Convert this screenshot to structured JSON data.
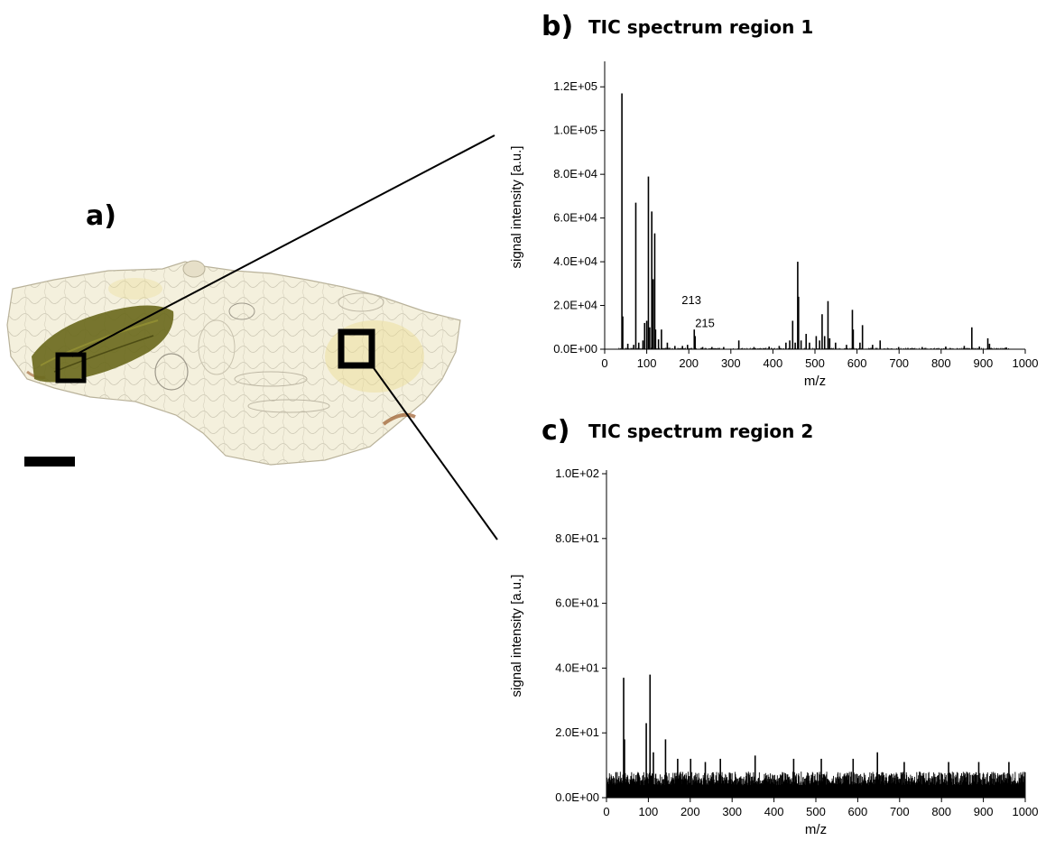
{
  "panels": {
    "a": {
      "letter": "a)"
    },
    "b": {
      "letter": "b)",
      "title": "TIC spectrum region 1"
    },
    "c": {
      "letter": "c)",
      "title": "TIC spectrum region 2"
    }
  },
  "colors": {
    "tissue_fill": "#f4f0dd",
    "tissue_edge": "#b9b29a",
    "lesion": "#6b6a1e",
    "yellow_patch": "#eadc92",
    "brown_streak": "#9a5a2a",
    "marker": "#000000"
  },
  "chart_data": [
    {
      "type": "bar",
      "title": "TIC spectrum region 1",
      "xlabel": "m/z",
      "ylabel": "signal intensity [a.u.]",
      "xlim": [
        0,
        1000
      ],
      "ylim": [
        0,
        130000
      ],
      "x_ticks": [
        "0",
        "100",
        "200",
        "300",
        "400",
        "500",
        "600",
        "700",
        "800",
        "900",
        "1000"
      ],
      "y_ticks": [
        "0.0E+00",
        "2.0E+04",
        "4.0E+04",
        "6.0E+04",
        "8.0E+04",
        "1.0E+05",
        "1.2E+05"
      ],
      "x_tick_values": [
        0,
        100,
        200,
        300,
        400,
        500,
        600,
        700,
        800,
        900,
        1000
      ],
      "y_tick_values": [
        0,
        20000,
        40000,
        60000,
        80000,
        100000,
        120000
      ],
      "peaks": [
        {
          "x": 41,
          "y": 117000
        },
        {
          "x": 43,
          "y": 15000
        },
        {
          "x": 55,
          "y": 2500
        },
        {
          "x": 69,
          "y": 2000
        },
        {
          "x": 74,
          "y": 67000
        },
        {
          "x": 81,
          "y": 3000
        },
        {
          "x": 91,
          "y": 4000
        },
        {
          "x": 95,
          "y": 12000
        },
        {
          "x": 100,
          "y": 13000
        },
        {
          "x": 104,
          "y": 79000
        },
        {
          "x": 107,
          "y": 10000
        },
        {
          "x": 112,
          "y": 63000
        },
        {
          "x": 115,
          "y": 32000
        },
        {
          "x": 119,
          "y": 53000
        },
        {
          "x": 121,
          "y": 9000
        },
        {
          "x": 128,
          "y": 4500
        },
        {
          "x": 135,
          "y": 9000
        },
        {
          "x": 149,
          "y": 3000
        },
        {
          "x": 167,
          "y": 1500
        },
        {
          "x": 185,
          "y": 1500
        },
        {
          "x": 197,
          "y": 2000
        },
        {
          "x": 213,
          "y": 9000
        },
        {
          "x": 215,
          "y": 6000
        },
        {
          "x": 233,
          "y": 1000
        },
        {
          "x": 255,
          "y": 1000
        },
        {
          "x": 283,
          "y": 1000
        },
        {
          "x": 319,
          "y": 4000
        },
        {
          "x": 355,
          "y": 1000
        },
        {
          "x": 391,
          "y": 1200
        },
        {
          "x": 415,
          "y": 1500
        },
        {
          "x": 431,
          "y": 3000
        },
        {
          "x": 440,
          "y": 4000
        },
        {
          "x": 447,
          "y": 13000
        },
        {
          "x": 453,
          "y": 3000
        },
        {
          "x": 459,
          "y": 40000
        },
        {
          "x": 461,
          "y": 24000
        },
        {
          "x": 467,
          "y": 4000
        },
        {
          "x": 479,
          "y": 7000
        },
        {
          "x": 487,
          "y": 3000
        },
        {
          "x": 503,
          "y": 6000
        },
        {
          "x": 511,
          "y": 4000
        },
        {
          "x": 517,
          "y": 16000
        },
        {
          "x": 523,
          "y": 6000
        },
        {
          "x": 531,
          "y": 22000
        },
        {
          "x": 535,
          "y": 5000
        },
        {
          "x": 549,
          "y": 3000
        },
        {
          "x": 575,
          "y": 2000
        },
        {
          "x": 589,
          "y": 18000
        },
        {
          "x": 591,
          "y": 9000
        },
        {
          "x": 607,
          "y": 3000
        },
        {
          "x": 613,
          "y": 11000
        },
        {
          "x": 637,
          "y": 2000
        },
        {
          "x": 655,
          "y": 4000
        },
        {
          "x": 699,
          "y": 1000
        },
        {
          "x": 755,
          "y": 1000
        },
        {
          "x": 811,
          "y": 1200
        },
        {
          "x": 855,
          "y": 1500
        },
        {
          "x": 873,
          "y": 10000
        },
        {
          "x": 891,
          "y": 1200
        },
        {
          "x": 911,
          "y": 5000
        },
        {
          "x": 915,
          "y": 2500
        },
        {
          "x": 955,
          "y": 800
        }
      ],
      "annotations": [
        {
          "text": "213",
          "x": 213
        },
        {
          "text": "215",
          "x": 215
        }
      ]
    },
    {
      "type": "bar",
      "title": "TIC spectrum region 2",
      "xlabel": "m/z",
      "ylabel": "signal intensity [a.u.]",
      "xlim": [
        0,
        1000
      ],
      "ylim": [
        0,
        100
      ],
      "x_ticks": [
        "0",
        "100",
        "200",
        "300",
        "400",
        "500",
        "600",
        "700",
        "800",
        "900",
        "1000"
      ],
      "y_ticks": [
        "0.0E+00",
        "2.0E+01",
        "4.0E+01",
        "6.0E+01",
        "8.0E+01",
        "1.0E+02"
      ],
      "x_tick_values": [
        0,
        100,
        200,
        300,
        400,
        500,
        600,
        700,
        800,
        900,
        1000
      ],
      "y_tick_values": [
        0,
        20,
        40,
        60,
        80,
        100
      ],
      "noise_baseline": 7,
      "peaks": [
        {
          "x": 41,
          "y": 37
        },
        {
          "x": 43,
          "y": 18
        },
        {
          "x": 95,
          "y": 23
        },
        {
          "x": 104,
          "y": 38
        },
        {
          "x": 112,
          "y": 14
        },
        {
          "x": 141,
          "y": 18
        },
        {
          "x": 170,
          "y": 12
        },
        {
          "x": 201,
          "y": 12
        },
        {
          "x": 236,
          "y": 11
        },
        {
          "x": 272,
          "y": 12
        },
        {
          "x": 355,
          "y": 13
        },
        {
          "x": 447,
          "y": 12
        },
        {
          "x": 513,
          "y": 12
        },
        {
          "x": 589,
          "y": 12
        },
        {
          "x": 647,
          "y": 14
        },
        {
          "x": 711,
          "y": 11
        },
        {
          "x": 817,
          "y": 11
        },
        {
          "x": 889,
          "y": 11
        },
        {
          "x": 961,
          "y": 11
        }
      ]
    }
  ]
}
